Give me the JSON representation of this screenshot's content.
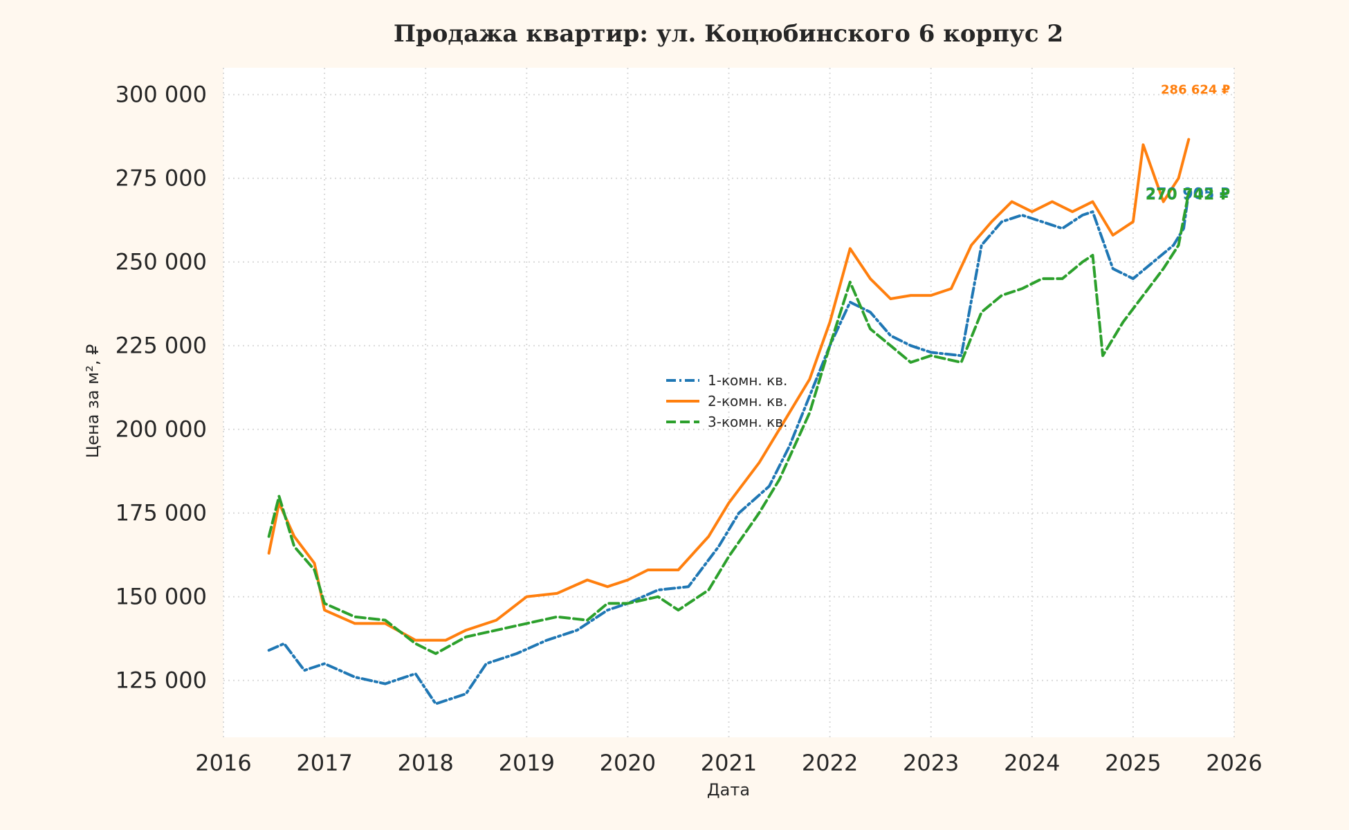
{
  "chart_data": {
    "type": "line",
    "title": "Продажа квартир: ул. Коцюбинского 6 корпус 2",
    "xlabel": "Дата",
    "ylabel": "Цена за м², ₽",
    "xlim": [
      2016,
      2026
    ],
    "ylim": [
      108000,
      308000
    ],
    "x_ticks": [
      2016,
      2017,
      2018,
      2019,
      2020,
      2021,
      2022,
      2023,
      2024,
      2025,
      2026
    ],
    "x_tick_labels": [
      "2016",
      "2017",
      "2018",
      "2019",
      "2020",
      "2021",
      "2022",
      "2023",
      "2024",
      "2025",
      "2026"
    ],
    "y_ticks": [
      125000,
      150000,
      175000,
      200000,
      225000,
      250000,
      275000,
      300000
    ],
    "y_tick_labels": [
      "125 000",
      "150 000",
      "175 000",
      "200 000",
      "225 000",
      "250 000",
      "275 000",
      "300 000"
    ],
    "grid": true,
    "legend_position": "center",
    "series": [
      {
        "name": "1-комн. кв.",
        "color": "#1f77b4",
        "style": "dashdot",
        "end_label": "270 905 ₽",
        "points": [
          [
            2016.45,
            134000
          ],
          [
            2016.6,
            136000
          ],
          [
            2016.8,
            128000
          ],
          [
            2017.0,
            130000
          ],
          [
            2017.3,
            126000
          ],
          [
            2017.6,
            124000
          ],
          [
            2017.9,
            127000
          ],
          [
            2018.1,
            118000
          ],
          [
            2018.4,
            121000
          ],
          [
            2018.6,
            130000
          ],
          [
            2018.9,
            133000
          ],
          [
            2019.2,
            137000
          ],
          [
            2019.5,
            140000
          ],
          [
            2019.8,
            146000
          ],
          [
            2020.0,
            148000
          ],
          [
            2020.3,
            152000
          ],
          [
            2020.6,
            153000
          ],
          [
            2020.9,
            165000
          ],
          [
            2021.1,
            175000
          ],
          [
            2021.4,
            183000
          ],
          [
            2021.6,
            195000
          ],
          [
            2021.8,
            210000
          ],
          [
            2022.0,
            225000
          ],
          [
            2022.2,
            238000
          ],
          [
            2022.4,
            235000
          ],
          [
            2022.6,
            228000
          ],
          [
            2022.8,
            225000
          ],
          [
            2023.0,
            223000
          ],
          [
            2023.3,
            222000
          ],
          [
            2023.5,
            255000
          ],
          [
            2023.7,
            262000
          ],
          [
            2023.9,
            264000
          ],
          [
            2024.1,
            262000
          ],
          [
            2024.3,
            260000
          ],
          [
            2024.5,
            264000
          ],
          [
            2024.6,
            265000
          ],
          [
            2024.8,
            248000
          ],
          [
            2025.0,
            245000
          ],
          [
            2025.2,
            250000
          ],
          [
            2025.4,
            255000
          ],
          [
            2025.5,
            260000
          ],
          [
            2025.55,
            270905
          ]
        ]
      },
      {
        "name": "2-комн. кв.",
        "color": "#ff7f0e",
        "style": "solid",
        "end_label": "286 624 ₽",
        "points": [
          [
            2016.45,
            163000
          ],
          [
            2016.55,
            178000
          ],
          [
            2016.7,
            168000
          ],
          [
            2016.9,
            160000
          ],
          [
            2017.0,
            146000
          ],
          [
            2017.3,
            142000
          ],
          [
            2017.6,
            142000
          ],
          [
            2017.9,
            137000
          ],
          [
            2018.2,
            137000
          ],
          [
            2018.4,
            140000
          ],
          [
            2018.7,
            143000
          ],
          [
            2019.0,
            150000
          ],
          [
            2019.3,
            151000
          ],
          [
            2019.6,
            155000
          ],
          [
            2019.8,
            153000
          ],
          [
            2020.0,
            155000
          ],
          [
            2020.2,
            158000
          ],
          [
            2020.5,
            158000
          ],
          [
            2020.8,
            168000
          ],
          [
            2021.0,
            178000
          ],
          [
            2021.3,
            190000
          ],
          [
            2021.5,
            200000
          ],
          [
            2021.8,
            215000
          ],
          [
            2022.0,
            232000
          ],
          [
            2022.2,
            254000
          ],
          [
            2022.4,
            245000
          ],
          [
            2022.6,
            239000
          ],
          [
            2022.8,
            240000
          ],
          [
            2023.0,
            240000
          ],
          [
            2023.2,
            242000
          ],
          [
            2023.4,
            255000
          ],
          [
            2023.6,
            262000
          ],
          [
            2023.8,
            268000
          ],
          [
            2024.0,
            265000
          ],
          [
            2024.2,
            268000
          ],
          [
            2024.4,
            265000
          ],
          [
            2024.6,
            268000
          ],
          [
            2024.8,
            258000
          ],
          [
            2025.0,
            262000
          ],
          [
            2025.1,
            285000
          ],
          [
            2025.3,
            268000
          ],
          [
            2025.45,
            275000
          ],
          [
            2025.55,
            286624
          ]
        ]
      },
      {
        "name": "3-комн. кв.",
        "color": "#2ca02c",
        "style": "dashed",
        "end_label": "270 742 ₽",
        "points": [
          [
            2016.45,
            168000
          ],
          [
            2016.55,
            180000
          ],
          [
            2016.7,
            165000
          ],
          [
            2016.9,
            158000
          ],
          [
            2017.0,
            148000
          ],
          [
            2017.3,
            144000
          ],
          [
            2017.6,
            143000
          ],
          [
            2017.9,
            136000
          ],
          [
            2018.1,
            133000
          ],
          [
            2018.4,
            138000
          ],
          [
            2018.7,
            140000
          ],
          [
            2019.0,
            142000
          ],
          [
            2019.3,
            144000
          ],
          [
            2019.6,
            143000
          ],
          [
            2019.8,
            148000
          ],
          [
            2020.0,
            148000
          ],
          [
            2020.3,
            150000
          ],
          [
            2020.5,
            146000
          ],
          [
            2020.8,
            152000
          ],
          [
            2021.0,
            162000
          ],
          [
            2021.3,
            175000
          ],
          [
            2021.5,
            185000
          ],
          [
            2021.8,
            205000
          ],
          [
            2022.0,
            225000
          ],
          [
            2022.2,
            244000
          ],
          [
            2022.4,
            230000
          ],
          [
            2022.6,
            225000
          ],
          [
            2022.8,
            220000
          ],
          [
            2023.0,
            222000
          ],
          [
            2023.3,
            220000
          ],
          [
            2023.5,
            235000
          ],
          [
            2023.7,
            240000
          ],
          [
            2023.9,
            242000
          ],
          [
            2024.1,
            245000
          ],
          [
            2024.3,
            245000
          ],
          [
            2024.5,
            250000
          ],
          [
            2024.6,
            252000
          ],
          [
            2024.7,
            222000
          ],
          [
            2024.9,
            232000
          ],
          [
            2025.1,
            240000
          ],
          [
            2025.3,
            248000
          ],
          [
            2025.45,
            255000
          ],
          [
            2025.55,
            270742
          ]
        ]
      }
    ]
  }
}
